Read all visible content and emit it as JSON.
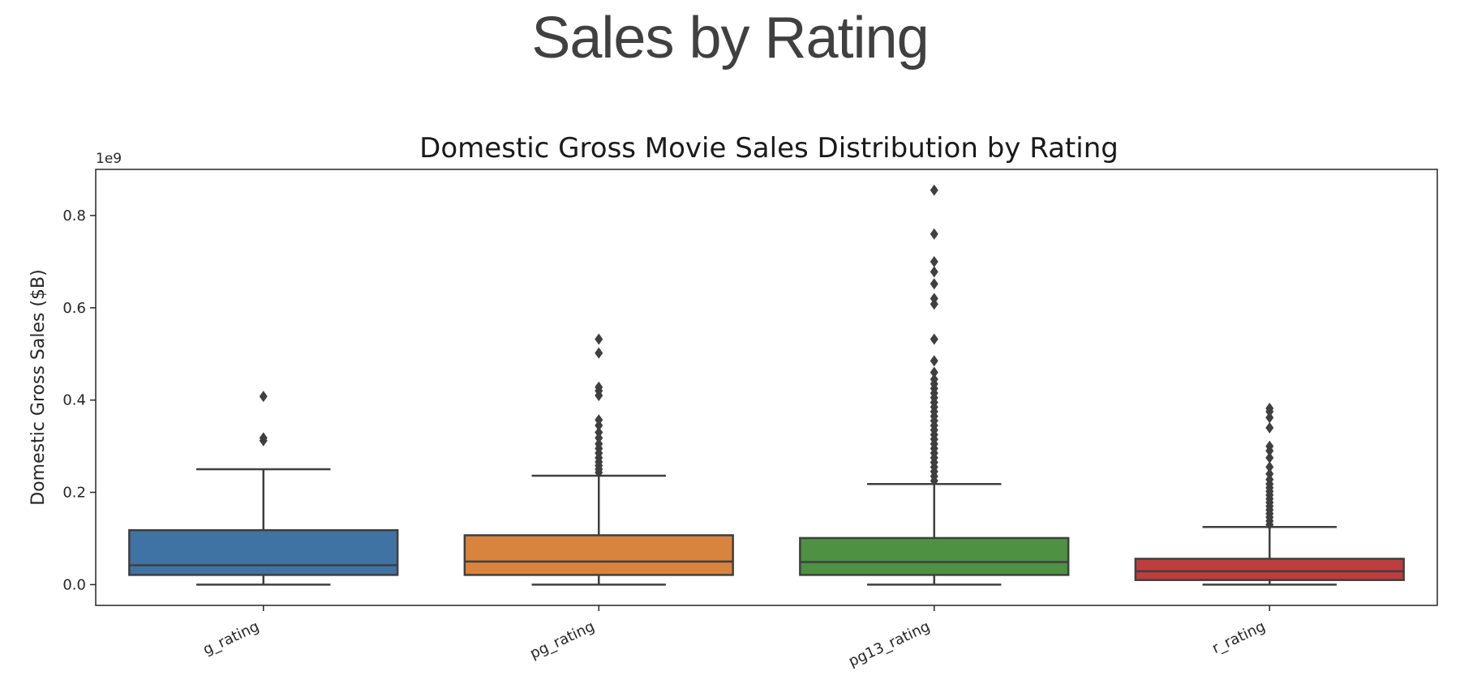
{
  "page": {
    "title": "Sales by Rating"
  },
  "chart_data": {
    "type": "box",
    "title": "Domestic Gross Movie Sales Distribution by Rating",
    "ylabel": "Domestic Gross Sales ($B)",
    "xlabel": "",
    "y_offset_label": "1e9",
    "y_scale_factor": 1000000000,
    "ylim": [
      -0.045,
      0.9
    ],
    "yticks": [
      0.0,
      0.2,
      0.4,
      0.6,
      0.8
    ],
    "ytick_labels": [
      "0.0",
      "0.2",
      "0.4",
      "0.6",
      "0.8"
    ],
    "grid": false,
    "categories": [
      "g_rating",
      "pg_rating",
      "pg13_rating",
      "r_rating"
    ],
    "boxes": [
      {
        "name": "g_rating",
        "color": "#3f73a3",
        "whisker_low": 0.0,
        "q1": 0.021,
        "median": 0.042,
        "q3": 0.118,
        "whisker_high": 0.25,
        "outliers": [
          0.408,
          0.318,
          0.312
        ]
      },
      {
        "name": "pg_rating",
        "color": "#d8843e",
        "whisker_low": 0.0,
        "q1": 0.021,
        "median": 0.05,
        "q3": 0.107,
        "whisker_high": 0.236,
        "outliers": [
          0.243,
          0.25,
          0.258,
          0.266,
          0.275,
          0.285,
          0.295,
          0.305,
          0.318,
          0.33,
          0.345,
          0.357,
          0.41,
          0.42,
          0.428,
          0.502,
          0.532
        ]
      },
      {
        "name": "pg13_rating",
        "color": "#4e9143",
        "whisker_low": 0.0,
        "q1": 0.021,
        "median": 0.049,
        "q3": 0.101,
        "whisker_high": 0.218,
        "outliers": [
          0.225,
          0.235,
          0.245,
          0.255,
          0.265,
          0.275,
          0.285,
          0.295,
          0.305,
          0.315,
          0.325,
          0.335,
          0.345,
          0.355,
          0.365,
          0.375,
          0.385,
          0.395,
          0.405,
          0.415,
          0.425,
          0.435,
          0.445,
          0.46,
          0.485,
          0.532,
          0.608,
          0.62,
          0.652,
          0.678,
          0.7,
          0.76,
          0.855
        ]
      },
      {
        "name": "r_rating",
        "color": "#c03d3e",
        "whisker_low": 0.0,
        "q1": 0.01,
        "median": 0.029,
        "q3": 0.056,
        "whisker_high": 0.125,
        "outliers": [
          0.13,
          0.138,
          0.146,
          0.154,
          0.162,
          0.17,
          0.178,
          0.186,
          0.194,
          0.202,
          0.21,
          0.218,
          0.228,
          0.24,
          0.255,
          0.275,
          0.29,
          0.3,
          0.34,
          0.362,
          0.375,
          0.382
        ]
      }
    ]
  }
}
